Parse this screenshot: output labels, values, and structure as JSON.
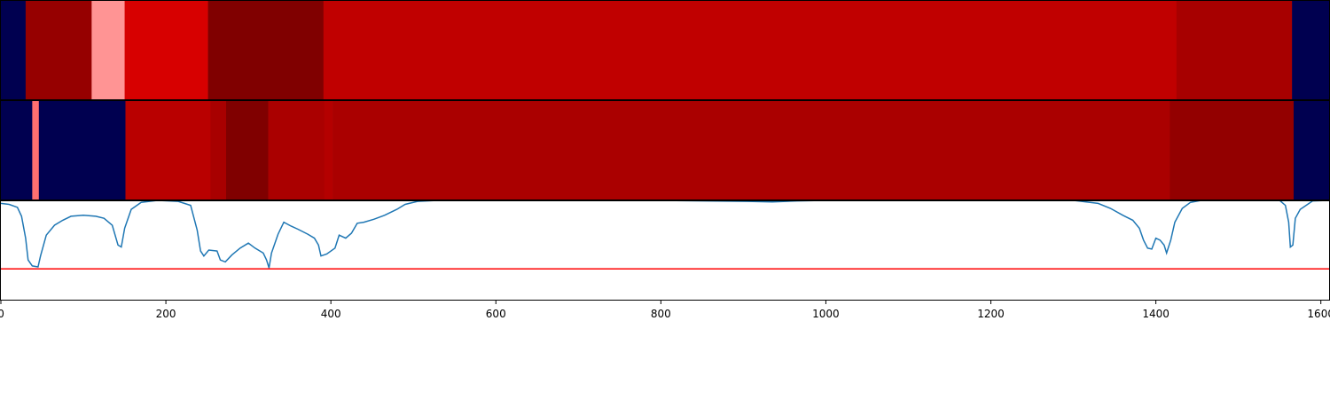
{
  "chart_data": {
    "type": "heatmap",
    "x_range": [
      0,
      1610
    ],
    "x_ticks": [
      "0",
      "200",
      "400",
      "600",
      "800",
      "1000",
      "1200",
      "1400",
      "1600"
    ],
    "x_tick_values": [
      0,
      200,
      400,
      600,
      800,
      1000,
      1200,
      1400,
      1600
    ],
    "colors": {
      "background_segment": "#000050",
      "line": "#1f77b4",
      "threshold_line": "#ff0000"
    },
    "strip_1_segments": [
      {
        "start": 0,
        "end": 30,
        "color": "#000050"
      },
      {
        "start": 30,
        "end": 110,
        "color": "#960000"
      },
      {
        "start": 110,
        "end": 150,
        "color": "#ff9494"
      },
      {
        "start": 150,
        "end": 251,
        "color": "#d70000"
      },
      {
        "start": 251,
        "end": 391,
        "color": "#800000"
      },
      {
        "start": 391,
        "end": 1425,
        "color": "#c00000"
      },
      {
        "start": 1425,
        "end": 1565,
        "color": "#a70000"
      },
      {
        "start": 1565,
        "end": 1610,
        "color": "#000050"
      }
    ],
    "strip_2_segments": [
      {
        "start": 0,
        "end": 38,
        "color": "#000050"
      },
      {
        "start": 38,
        "end": 46,
        "color": "#ff7070"
      },
      {
        "start": 46,
        "end": 151,
        "color": "#000050"
      },
      {
        "start": 151,
        "end": 254,
        "color": "#b90000"
      },
      {
        "start": 254,
        "end": 273,
        "color": "#a80000"
      },
      {
        "start": 273,
        "end": 324,
        "color": "#800000"
      },
      {
        "start": 324,
        "end": 392,
        "color": "#aa0000"
      },
      {
        "start": 392,
        "end": 402,
        "color": "#b40000"
      },
      {
        "start": 402,
        "end": 1417,
        "color": "#aa0000"
      },
      {
        "start": 1417,
        "end": 1567,
        "color": "#930000"
      },
      {
        "start": 1567,
        "end": 1610,
        "color": "#000050"
      }
    ],
    "line_panel": {
      "y_range": [
        0,
        1
      ],
      "threshold": 0.31,
      "points": [
        [
          0,
          0.97
        ],
        [
          10,
          0.96
        ],
        [
          20,
          0.93
        ],
        [
          25,
          0.84
        ],
        [
          30,
          0.62
        ],
        [
          33,
          0.4
        ],
        [
          38,
          0.34
        ],
        [
          45,
          0.33
        ],
        [
          48,
          0.44
        ],
        [
          55,
          0.65
        ],
        [
          65,
          0.75
        ],
        [
          75,
          0.8
        ],
        [
          85,
          0.84
        ],
        [
          100,
          0.85
        ],
        [
          115,
          0.84
        ],
        [
          125,
          0.82
        ],
        [
          135,
          0.75
        ],
        [
          142,
          0.55
        ],
        [
          146,
          0.53
        ],
        [
          150,
          0.72
        ],
        [
          158,
          0.91
        ],
        [
          170,
          0.98
        ],
        [
          190,
          1.0
        ],
        [
          215,
          0.99
        ],
        [
          230,
          0.95
        ],
        [
          238,
          0.7
        ],
        [
          242,
          0.49
        ],
        [
          246,
          0.44
        ],
        [
          252,
          0.5
        ],
        [
          262,
          0.49
        ],
        [
          266,
          0.4
        ],
        [
          272,
          0.38
        ],
        [
          280,
          0.45
        ],
        [
          290,
          0.52
        ],
        [
          300,
          0.57
        ],
        [
          308,
          0.52
        ],
        [
          318,
          0.47
        ],
        [
          322,
          0.4
        ],
        [
          325,
          0.32
        ],
        [
          328,
          0.47
        ],
        [
          336,
          0.66
        ],
        [
          343,
          0.78
        ],
        [
          352,
          0.74
        ],
        [
          360,
          0.71
        ],
        [
          372,
          0.66
        ],
        [
          380,
          0.62
        ],
        [
          385,
          0.55
        ],
        [
          388,
          0.44
        ],
        [
          395,
          0.46
        ],
        [
          405,
          0.52
        ],
        [
          410,
          0.65
        ],
        [
          418,
          0.62
        ],
        [
          425,
          0.67
        ],
        [
          432,
          0.77
        ],
        [
          440,
          0.78
        ],
        [
          452,
          0.81
        ],
        [
          465,
          0.85
        ],
        [
          480,
          0.91
        ],
        [
          490,
          0.96
        ],
        [
          505,
          0.99
        ],
        [
          530,
          1.0
        ],
        [
          600,
          1.0
        ],
        [
          800,
          1.0
        ],
        [
          905,
          0.99
        ],
        [
          935,
          0.985
        ],
        [
          965,
          0.995
        ],
        [
          1000,
          1.0
        ],
        [
          1200,
          1.0
        ],
        [
          1300,
          1.0
        ],
        [
          1330,
          0.97
        ],
        [
          1345,
          0.92
        ],
        [
          1360,
          0.85
        ],
        [
          1372,
          0.8
        ],
        [
          1380,
          0.72
        ],
        [
          1385,
          0.6
        ],
        [
          1390,
          0.52
        ],
        [
          1395,
          0.51
        ],
        [
          1400,
          0.62
        ],
        [
          1405,
          0.6
        ],
        [
          1410,
          0.55
        ],
        [
          1413,
          0.47
        ],
        [
          1418,
          0.6
        ],
        [
          1423,
          0.78
        ],
        [
          1432,
          0.92
        ],
        [
          1442,
          0.98
        ],
        [
          1455,
          1.0
        ],
        [
          1550,
          1.0
        ],
        [
          1557,
          0.95
        ],
        [
          1561,
          0.78
        ],
        [
          1563,
          0.53
        ],
        [
          1566,
          0.55
        ],
        [
          1569,
          0.82
        ],
        [
          1575,
          0.91
        ],
        [
          1590,
          0.995
        ],
        [
          1610,
          1.0
        ]
      ]
    }
  }
}
